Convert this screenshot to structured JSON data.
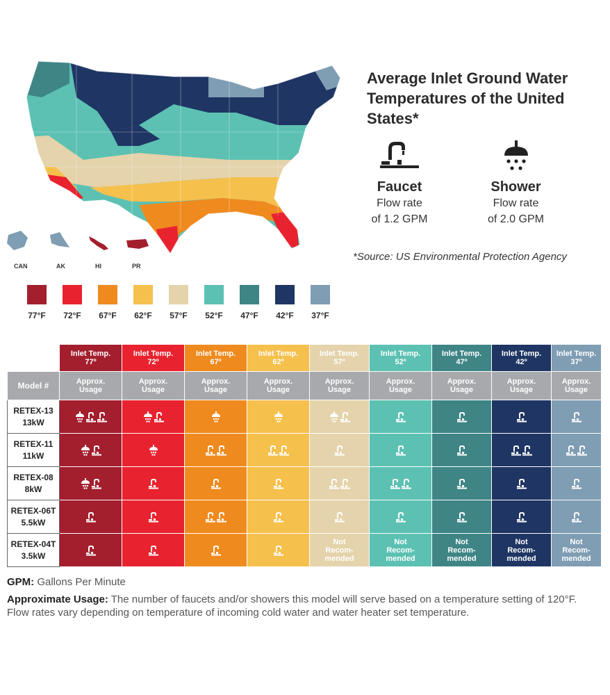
{
  "title": "Average Inlet Ground Water Temperatures of the United States*",
  "fixtures": {
    "faucet": {
      "name": "Faucet",
      "rate_line1": "Flow rate",
      "rate_line2": "of 1.2 GPM"
    },
    "shower": {
      "name": "Shower",
      "rate_line1": "Flow rate",
      "rate_line2": "of 2.0 GPM"
    }
  },
  "source": "*Source: US Environmental Protection Agency",
  "territories": [
    "CAN",
    "AK",
    "HI",
    "PR"
  ],
  "legend": [
    {
      "label": "77°F",
      "color": "#a31f2e"
    },
    {
      "label": "72°F",
      "color": "#e8232f"
    },
    {
      "label": "67°F",
      "color": "#ef8a1f"
    },
    {
      "label": "62°F",
      "color": "#f6c04d"
    },
    {
      "label": "57°F",
      "color": "#e4d3ab"
    },
    {
      "label": "52°F",
      "color": "#5cc1b2"
    },
    {
      "label": "47°F",
      "color": "#3f8586"
    },
    {
      "label": "42°F",
      "color": "#1f3563"
    },
    {
      "label": "37°F",
      "color": "#7f9db3"
    }
  ],
  "table": {
    "model_header": "Model #",
    "inlet_label": "Inlet Temp.",
    "usage_label_1": "Approx.",
    "usage_label_2": "Usage",
    "temps": [
      "77º",
      "72º",
      "67º",
      "62º",
      "57º",
      "52º",
      "47º",
      "42º",
      "37º"
    ],
    "not_rec": [
      "Not",
      "Recom-",
      "mended"
    ],
    "rows": [
      {
        "model": "RETEX-13",
        "kw": "13kW",
        "cells": [
          [
            1,
            2
          ],
          [
            1,
            1
          ],
          [
            1,
            0
          ],
          [
            1,
            0
          ],
          [
            1,
            1
          ],
          [
            0,
            1
          ],
          [
            0,
            1
          ],
          [
            0,
            1
          ],
          [
            0,
            1
          ]
        ]
      },
      {
        "model": "RETEX-11",
        "kw": "11kW",
        "cells": [
          [
            1,
            1
          ],
          [
            1,
            0
          ],
          [
            0,
            2
          ],
          [
            0,
            2
          ],
          [
            0,
            1
          ],
          [
            0,
            1
          ],
          [
            0,
            1
          ],
          [
            0,
            2
          ],
          [
            0,
            2
          ]
        ]
      },
      {
        "model": "RETEX-08",
        "kw": "8kW",
        "cells": [
          [
            1,
            1
          ],
          [
            0,
            1
          ],
          [
            0,
            1
          ],
          [
            0,
            1
          ],
          [
            0,
            2
          ],
          [
            0,
            2
          ],
          [
            0,
            1
          ],
          [
            0,
            1
          ],
          [
            0,
            1
          ]
        ]
      },
      {
        "model": "RETEX-06T",
        "kw": "5.5kW",
        "cells": [
          [
            0,
            1
          ],
          [
            0,
            1
          ],
          [
            0,
            2
          ],
          [
            0,
            1
          ],
          [
            0,
            1
          ],
          [
            0,
            1
          ],
          [
            0,
            1
          ],
          [
            0,
            1
          ],
          [
            0,
            1
          ]
        ]
      },
      {
        "model": "RETEX-04T",
        "kw": "3.5kW",
        "cells": [
          [
            0,
            1
          ],
          [
            0,
            1
          ],
          [
            0,
            1
          ],
          [
            0,
            1
          ],
          "NR",
          "NR",
          "NR",
          "NR",
          "NR"
        ]
      }
    ]
  },
  "notes": {
    "gpm_label": "GPM:",
    "gpm_text": " Gallons Per Minute",
    "usage_label": "Approximate Usage:",
    "usage_text": " The number of faucets and/or showers this model will serve based on a temperature setting of 120°F. Flow rates vary depending on temperature of incoming cold water and water heater set temperature."
  }
}
